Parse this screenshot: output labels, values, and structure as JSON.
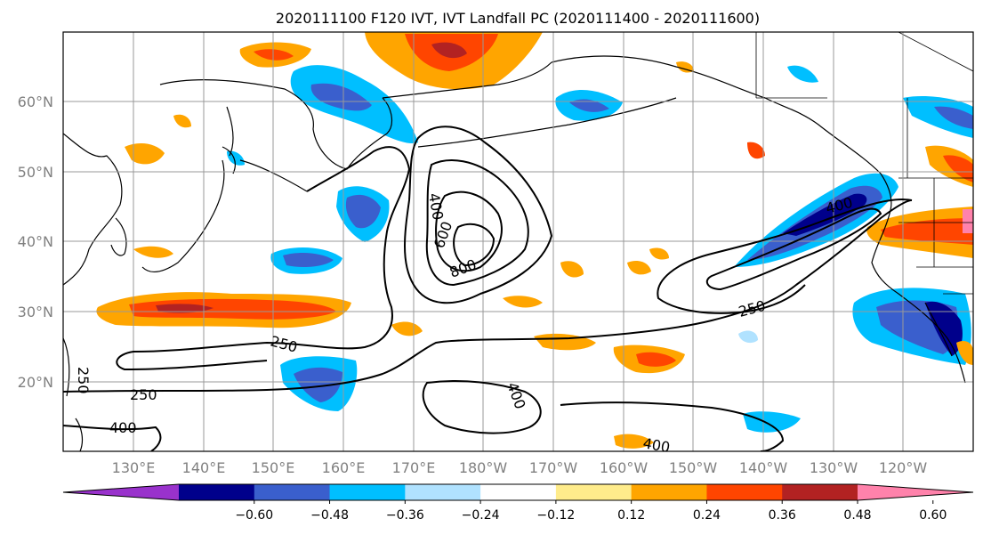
{
  "title": "2020111100 F120 IVT, IVT Landfall PC (2020111400 - 2020111600)",
  "lat_labels": [
    "60°N",
    "50°N",
    "40°N",
    "30°N",
    "20°N"
  ],
  "lon_labels": [
    "130°E",
    "140°E",
    "150°E",
    "160°E",
    "170°E",
    "180°W",
    "170°W",
    "160°W",
    "150°W",
    "140°W",
    "130°W",
    "120°W"
  ],
  "colorbar": {
    "colors": [
      "#9932cc",
      "#00008b",
      "#3a5fcd",
      "#00bfff",
      "#b0e2ff",
      "#ffffff",
      "#ffec8b",
      "#ffa500",
      "#ff4500",
      "#b22222",
      "#ff82ab"
    ],
    "ticks": [
      "−0.60",
      "−0.48",
      "−0.36",
      "−0.24",
      "−0.12",
      "0.12",
      "0.24",
      "0.36",
      "0.48",
      "0.60"
    ]
  },
  "contour_labels": [
    "400",
    "600",
    "800",
    "400",
    "250",
    "250",
    "250",
    "400",
    "400",
    "250",
    "400"
  ],
  "legend_shading": "IVT Landfall PC",
  "legend_contours": "IVT"
}
